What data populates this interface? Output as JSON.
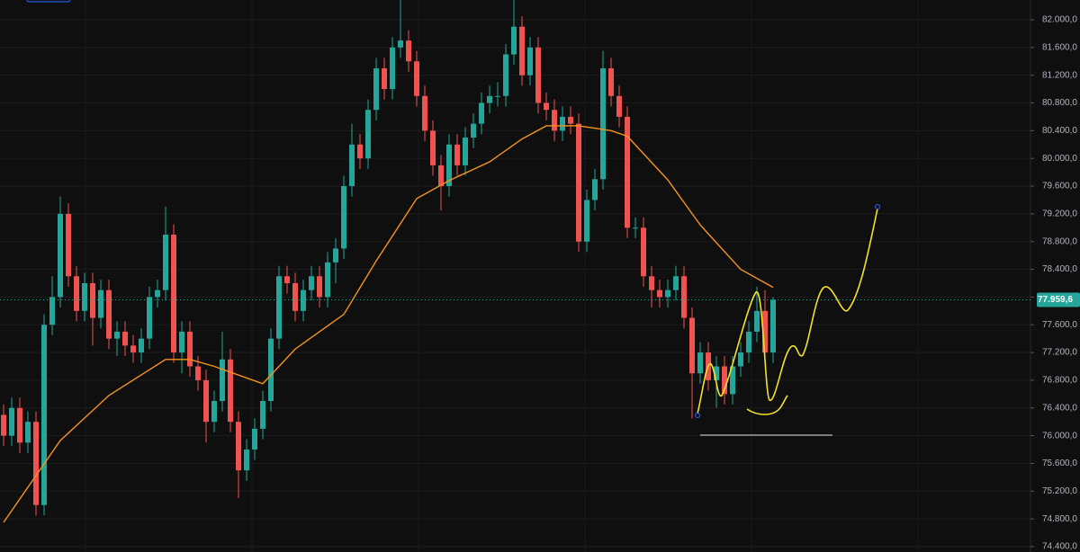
{
  "chart_data": {
    "type": "candlestick",
    "up_color": "#26a69a",
    "down_color": "#ef5350",
    "open": [
      76300,
      76000,
      76400,
      75900,
      76200,
      75000,
      77600,
      78000,
      79200,
      78300,
      77800,
      78200,
      77700,
      78100,
      77400,
      77500,
      77300,
      77200,
      77400,
      78000,
      78100,
      78900,
      77200,
      77500,
      77000,
      76800,
      76200,
      76500,
      77100,
      76200,
      75500,
      75800,
      76100,
      76500,
      77400,
      78300,
      78200,
      77800,
      78100,
      78300,
      78000,
      78500,
      78700,
      79600,
      80200,
      80000,
      80700,
      81300,
      81000,
      81600,
      81700,
      81400,
      80900,
      80400,
      79900,
      79600,
      80200,
      79900,
      80300,
      80500,
      80800,
      80900,
      80900,
      81500,
      81900,
      81200,
      81600,
      80800,
      80700,
      80400,
      80600,
      80500,
      78800,
      79400,
      79700,
      81300,
      80900,
      80600,
      79000,
      79000,
      78300,
      78100,
      78000,
      78100,
      78300,
      77700,
      76900,
      77200,
      76800,
      77000,
      76600,
      77000,
      77200,
      77500,
      77800,
      77200
    ],
    "high": [
      76450,
      76550,
      76550,
      76350,
      76350,
      77750,
      78300,
      79450,
      79350,
      78450,
      78350,
      78350,
      78250,
      78250,
      77650,
      77650,
      77450,
      77550,
      78150,
      78250,
      79300,
      79050,
      77650,
      77650,
      77150,
      76950,
      76650,
      77500,
      77250,
      76350,
      75950,
      76250,
      76650,
      77550,
      78450,
      78450,
      78350,
      78250,
      78450,
      78450,
      78650,
      78850,
      79750,
      80500,
      80350,
      80850,
      81450,
      81450,
      81750,
      82300,
      81850,
      81550,
      81050,
      80550,
      80050,
      80350,
      80350,
      80450,
      80650,
      80950,
      81050,
      81100,
      81650,
      82300,
      82050,
      81750,
      81750,
      80950,
      80850,
      80750,
      80750,
      80650,
      79550,
      79850,
      81550,
      81450,
      81050,
      80750,
      79150,
      79150,
      78450,
      78250,
      78250,
      78450,
      78450,
      77850,
      77350,
      77350,
      77150,
      77150,
      77150,
      77350,
      77650,
      78150,
      78100,
      78000
    ],
    "low": [
      75850,
      75850,
      75750,
      75750,
      74850,
      74850,
      77450,
      77850,
      78150,
      77650,
      77650,
      77300,
      77550,
      77250,
      77150,
      77150,
      77050,
      77050,
      77250,
      77850,
      77950,
      77050,
      76900,
      76850,
      76650,
      75900,
      76050,
      76350,
      76050,
      75100,
      75350,
      75650,
      75950,
      76350,
      77250,
      78050,
      77650,
      77650,
      77950,
      77850,
      77850,
      78200,
      78550,
      79450,
      79850,
      79850,
      80550,
      80850,
      80850,
      81450,
      81250,
      80750,
      80250,
      79750,
      79250,
      79450,
      79750,
      79750,
      80150,
      80350,
      80650,
      80750,
      80750,
      81350,
      81050,
      81050,
      80650,
      80550,
      80250,
      80250,
      80350,
      78650,
      78650,
      79250,
      79550,
      80750,
      80450,
      78850,
      78850,
      78150,
      77850,
      77850,
      77850,
      77950,
      77550,
      76250,
      76750,
      76650,
      76400,
      76450,
      76450,
      76850,
      77050,
      77350,
      77050,
      77050
    ],
    "close": [
      76000,
      76400,
      75900,
      76200,
      75000,
      77600,
      78000,
      79200,
      78300,
      77800,
      78200,
      77700,
      78100,
      77400,
      77500,
      77300,
      77200,
      77400,
      78000,
      78100,
      78900,
      77200,
      77500,
      77000,
      76800,
      76200,
      76500,
      77100,
      76200,
      75500,
      75800,
      76100,
      76500,
      77400,
      78300,
      78200,
      77800,
      78100,
      78300,
      78000,
      78500,
      78700,
      79600,
      80200,
      80000,
      80700,
      81300,
      81000,
      81600,
      81700,
      81400,
      80900,
      80400,
      79900,
      79600,
      80200,
      79900,
      80300,
      80500,
      80800,
      80900,
      80900,
      81500,
      81900,
      81200,
      81600,
      80800,
      80700,
      80400,
      80600,
      80500,
      78800,
      79400,
      79700,
      81300,
      80900,
      80600,
      79000,
      79000,
      78300,
      78100,
      78000,
      78100,
      78300,
      77700,
      76900,
      77200,
      76800,
      77000,
      76600,
      77000,
      77200,
      77500,
      77800,
      77200,
      77960
    ],
    "ma": {
      "color": "#f7931a",
      "x": [
        0,
        7,
        13,
        20,
        23,
        26,
        32,
        36,
        42,
        46,
        51,
        55,
        60,
        64,
        67,
        71,
        75,
        77,
        82,
        86,
        91,
        95
      ],
      "values": [
        74750,
        75930,
        76580,
        77100,
        77100,
        77000,
        76750,
        77250,
        77750,
        78520,
        79420,
        79680,
        79950,
        80280,
        80470,
        80470,
        80400,
        80320,
        79690,
        79040,
        78400,
        78140
      ]
    },
    "ylim": [
      82285,
      74322
    ],
    "yticks": [
      {
        "value": 82000,
        "label": "82.000,0"
      },
      {
        "value": 81600,
        "label": "81.600,0"
      },
      {
        "value": 81200,
        "label": "81.200,0"
      },
      {
        "value": 80800,
        "label": "80.800,0"
      },
      {
        "value": 80400,
        "label": "80.400,0"
      },
      {
        "value": 80000,
        "label": "80.000,0"
      },
      {
        "value": 79600,
        "label": "79.600,0"
      },
      {
        "value": 79200,
        "label": "79.200,0"
      },
      {
        "value": 78800,
        "label": "78.800,0"
      },
      {
        "value": 78400,
        "label": "78.400,0"
      },
      {
        "value": 78000,
        "label": "78.000,0"
      },
      {
        "value": 77600,
        "label": "77.600,0"
      },
      {
        "value": 77200,
        "label": "77.200,0"
      },
      {
        "value": 76800,
        "label": "76.800,0"
      },
      {
        "value": 76400,
        "label": "76.400,0"
      },
      {
        "value": 76000,
        "label": "76.000,0"
      },
      {
        "value": 75600,
        "label": "75.600,0"
      },
      {
        "value": 75200,
        "label": "75.200,0"
      },
      {
        "value": 74800,
        "label": "74.800,0"
      },
      {
        "value": 74400,
        "label": "74.400,0"
      }
    ],
    "last_price": {
      "value": 77959.6,
      "label": "77.959,6"
    },
    "grid": true
  }
}
